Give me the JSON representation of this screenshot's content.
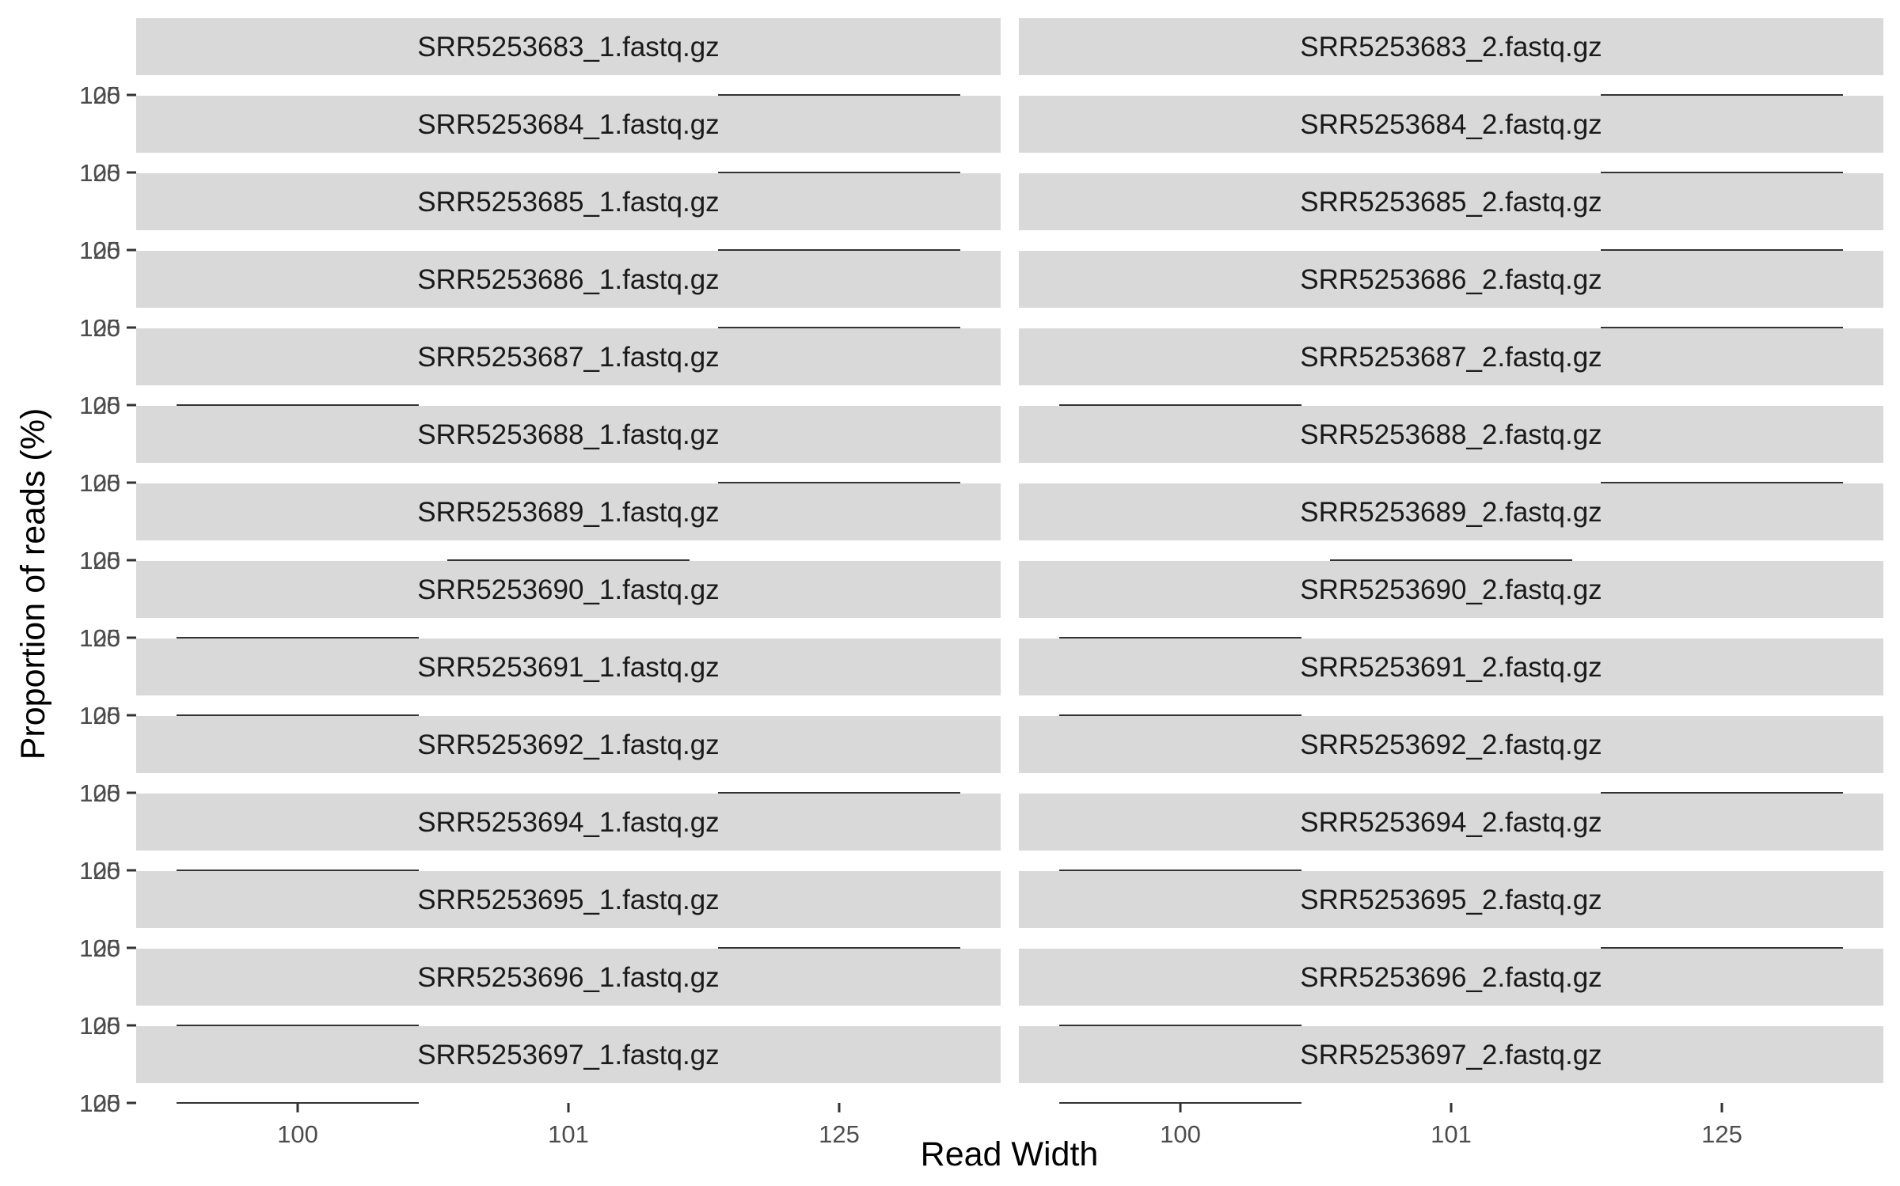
{
  "chart_data": {
    "type": "line",
    "xlabel": "Read Width",
    "ylabel": "Proportion of reads (%)",
    "x_categories": [
      "100",
      "101",
      "125"
    ],
    "y_ticks": [
      "100",
      "125"
    ],
    "grid": false,
    "colors": {
      "strip_fill": "#d9d9d9",
      "line": "#333333",
      "tick_text": "#4d4d4d",
      "background": "#ffffff"
    },
    "panels": [
      {
        "name": "SRR5253683_1.fastq.gz",
        "x": [
          "125"
        ],
        "y": [
          100
        ]
      },
      {
        "name": "SRR5253683_2.fastq.gz",
        "x": [
          "125"
        ],
        "y": [
          100
        ]
      },
      {
        "name": "SRR5253684_1.fastq.gz",
        "x": [
          "125"
        ],
        "y": [
          100
        ]
      },
      {
        "name": "SRR5253684_2.fastq.gz",
        "x": [
          "125"
        ],
        "y": [
          100
        ]
      },
      {
        "name": "SRR5253685_1.fastq.gz",
        "x": [
          "125"
        ],
        "y": [
          100
        ]
      },
      {
        "name": "SRR5253685_2.fastq.gz",
        "x": [
          "125"
        ],
        "y": [
          100
        ]
      },
      {
        "name": "SRR5253686_1.fastq.gz",
        "x": [
          "125"
        ],
        "y": [
          100
        ]
      },
      {
        "name": "SRR5253686_2.fastq.gz",
        "x": [
          "125"
        ],
        "y": [
          100
        ]
      },
      {
        "name": "SRR5253687_1.fastq.gz",
        "x": [
          "100"
        ],
        "y": [
          100
        ]
      },
      {
        "name": "SRR5253687_2.fastq.gz",
        "x": [
          "100"
        ],
        "y": [
          100
        ]
      },
      {
        "name": "SRR5253688_1.fastq.gz",
        "x": [
          "125"
        ],
        "y": [
          100
        ]
      },
      {
        "name": "SRR5253688_2.fastq.gz",
        "x": [
          "125"
        ],
        "y": [
          100
        ]
      },
      {
        "name": "SRR5253689_1.fastq.gz",
        "x": [
          "101"
        ],
        "y": [
          100
        ]
      },
      {
        "name": "SRR5253689_2.fastq.gz",
        "x": [
          "101"
        ],
        "y": [
          100
        ]
      },
      {
        "name": "SRR5253690_1.fastq.gz",
        "x": [
          "100"
        ],
        "y": [
          100
        ]
      },
      {
        "name": "SRR5253690_2.fastq.gz",
        "x": [
          "100"
        ],
        "y": [
          100
        ]
      },
      {
        "name": "SRR5253691_1.fastq.gz",
        "x": [
          "100"
        ],
        "y": [
          100
        ]
      },
      {
        "name": "SRR5253691_2.fastq.gz",
        "x": [
          "100"
        ],
        "y": [
          100
        ]
      },
      {
        "name": "SRR5253692_1.fastq.gz",
        "x": [
          "125"
        ],
        "y": [
          100
        ]
      },
      {
        "name": "SRR5253692_2.fastq.gz",
        "x": [
          "125"
        ],
        "y": [
          100
        ]
      },
      {
        "name": "SRR5253694_1.fastq.gz",
        "x": [
          "100"
        ],
        "y": [
          100
        ]
      },
      {
        "name": "SRR5253694_2.fastq.gz",
        "x": [
          "100"
        ],
        "y": [
          100
        ]
      },
      {
        "name": "SRR5253695_1.fastq.gz",
        "x": [
          "125"
        ],
        "y": [
          100
        ]
      },
      {
        "name": "SRR5253695_2.fastq.gz",
        "x": [
          "125"
        ],
        "y": [
          100
        ]
      },
      {
        "name": "SRR5253696_1.fastq.gz",
        "x": [
          "100"
        ],
        "y": [
          100
        ]
      },
      {
        "name": "SRR5253696_2.fastq.gz",
        "x": [
          "100"
        ],
        "y": [
          100
        ]
      },
      {
        "name": "SRR5253697_1.fastq.gz",
        "x": [
          "100"
        ],
        "y": [
          100
        ]
      },
      {
        "name": "SRR5253697_2.fastq.gz",
        "x": [
          "100"
        ],
        "y": [
          100
        ]
      }
    ]
  }
}
